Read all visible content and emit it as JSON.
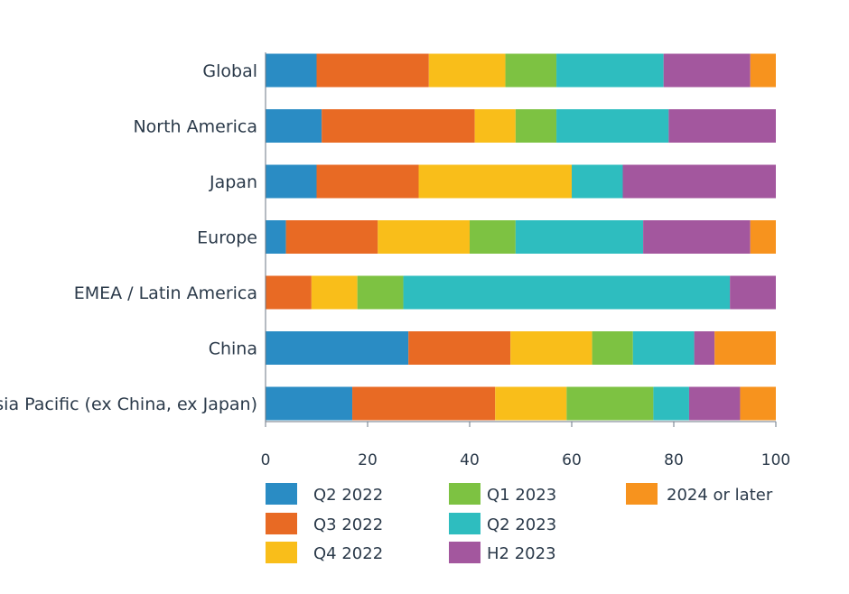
{
  "chart_data": {
    "type": "bar",
    "orientation": "horizontal",
    "stacked": true,
    "categories": [
      "Global",
      "North America",
      "Japan",
      "Europe",
      "EMEA / Latin America",
      "China",
      "Asia Pacific (ex China, ex Japan)"
    ],
    "series": [
      {
        "name": "Q2 2022",
        "color": "#2a8cc4",
        "values": [
          10,
          11,
          10,
          4,
          0,
          28,
          17
        ]
      },
      {
        "name": "Q3 2022",
        "color": "#e86a24",
        "values": [
          22,
          30,
          20,
          18,
          9,
          20,
          28
        ]
      },
      {
        "name": "Q4 2022",
        "color": "#f9be1a",
        "values": [
          15,
          8,
          30,
          18,
          9,
          16,
          14
        ]
      },
      {
        "name": "Q1 2023",
        "color": "#7dc242",
        "values": [
          10,
          8,
          0,
          9,
          9,
          8,
          17
        ]
      },
      {
        "name": "Q2 2023",
        "color": "#2ebdbf",
        "values": [
          21,
          22,
          10,
          25,
          64,
          12,
          7
        ]
      },
      {
        "name": "H2 2023",
        "color": "#a3579e",
        "values": [
          17,
          21,
          30,
          21,
          9,
          4,
          10
        ]
      },
      {
        "name": "2024 or later",
        "color": "#f7931e",
        "values": [
          5,
          0,
          0,
          5,
          0,
          12,
          7
        ]
      }
    ],
    "xlim": [
      0,
      100
    ],
    "xticks": [
      0,
      20,
      40,
      60,
      80,
      100
    ],
    "xlabel": "",
    "ylabel": "",
    "title": "",
    "grid": false,
    "legend_position": "bottom"
  }
}
